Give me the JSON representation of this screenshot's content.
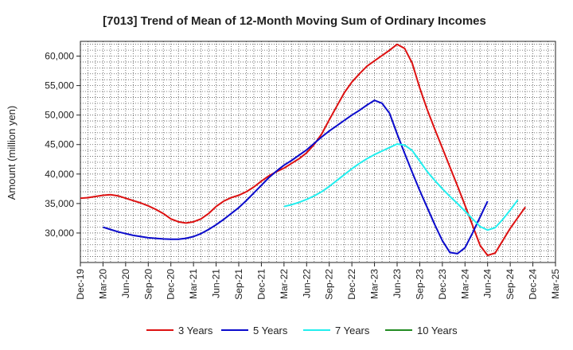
{
  "chart_data": {
    "type": "line",
    "title": "[7013]  Trend of Mean of 12-Month Moving Sum of Ordinary Incomes",
    "xlabel": "",
    "ylabel": "Amount (million yen)",
    "ylim": [
      25000,
      62500
    ],
    "y_ticks": [
      30000,
      35000,
      40000,
      45000,
      50000,
      55000,
      60000
    ],
    "y_tick_labels": [
      "30,000",
      "35,000",
      "40,000",
      "45,000",
      "50,000",
      "55,000",
      "60,000"
    ],
    "x_tick_labels": [
      "Dec-19",
      "Mar-20",
      "Jun-20",
      "Sep-20",
      "Dec-20",
      "Mar-21",
      "Jun-21",
      "Sep-21",
      "Dec-21",
      "Mar-22",
      "Jun-22",
      "Sep-22",
      "Dec-22",
      "Mar-23",
      "Jun-23",
      "Sep-23",
      "Dec-23",
      "Mar-24",
      "Jun-24",
      "Sep-24",
      "Dec-24",
      "Mar-25"
    ],
    "x_index_start": 0,
    "x_index_end": 63,
    "series": [
      {
        "name": "3 Years",
        "color": "#dd1111",
        "start_index": 0,
        "values": [
          35900,
          36000,
          36200,
          36400,
          36500,
          36300,
          35900,
          35500,
          35100,
          34600,
          34000,
          33300,
          32400,
          31900,
          31700,
          31900,
          32400,
          33300,
          34500,
          35400,
          36000,
          36400,
          37000,
          37800,
          38800,
          39700,
          40400,
          41000,
          41800,
          42600,
          43600,
          45000,
          46800,
          49200,
          51500,
          53800,
          55600,
          57000,
          58300,
          59200,
          60100,
          61000,
          62000,
          61300,
          58800,
          54600,
          50900,
          47600,
          44400,
          41200,
          38000,
          34700,
          31300,
          27900,
          26200,
          26600,
          28700,
          30800,
          32600,
          34400
        ]
      },
      {
        "name": "5 Years",
        "color": "#0a0acc",
        "start_index": 3,
        "values": [
          31000,
          30600,
          30200,
          29900,
          29600,
          29400,
          29200,
          29100,
          29000,
          28950,
          28950,
          29100,
          29400,
          29900,
          30600,
          31400,
          32300,
          33300,
          34300,
          35500,
          36800,
          38100,
          39400,
          40500,
          41500,
          42300,
          43200,
          44100,
          45200,
          46300,
          47300,
          48200,
          49100,
          50000,
          50800,
          51700,
          52500,
          52000,
          50300,
          46800,
          43500,
          40300,
          37200,
          34300,
          31400,
          28700,
          26700,
          26500,
          27500,
          30000,
          32700,
          35400
        ]
      },
      {
        "name": "7 Years",
        "color": "#22eeee",
        "start_index": 27,
        "values": [
          34500,
          34800,
          35200,
          35700,
          36300,
          37000,
          37900,
          38900,
          39900,
          40900,
          41800,
          42600,
          43300,
          43900,
          44500,
          45100,
          44900,
          44000,
          42200,
          40400,
          38900,
          37500,
          36200,
          35000,
          33700,
          32400,
          31100,
          30500,
          30900,
          32300,
          33900,
          35600
        ]
      },
      {
        "name": "10 Years",
        "color": "#228b22",
        "start_index": 0,
        "values": []
      }
    ],
    "legend_position": "bottom",
    "grid": true
  }
}
